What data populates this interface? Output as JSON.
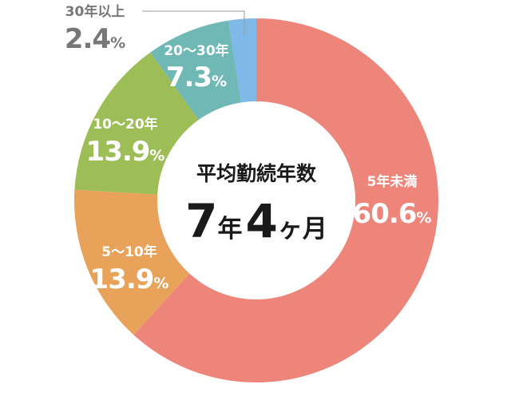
{
  "chart_data": {
    "type": "donut",
    "center": {
      "title": "平均勤続年数",
      "num1": "7",
      "unit1": "年",
      "num2": "4",
      "unit2": "ヶ月"
    },
    "slices": [
      {
        "category": "5年未満",
        "value": 60.6,
        "value_label": "60.6",
        "unit": "%",
        "color": "#ee857b"
      },
      {
        "category": "5〜10年",
        "value": 13.9,
        "value_label": "13.9",
        "unit": "%",
        "color": "#e9a25a"
      },
      {
        "category": "10〜20年",
        "value": 13.9,
        "value_label": "13.9",
        "unit": "%",
        "color": "#9dbd57"
      },
      {
        "category": "20〜30年",
        "value": 7.3,
        "value_label": "7.3",
        "unit": "%",
        "color": "#6fb8b5"
      },
      {
        "category": "30年以上",
        "value": 2.4,
        "value_label": "2.4",
        "unit": "%",
        "color": "#7fb9e8"
      }
    ]
  }
}
